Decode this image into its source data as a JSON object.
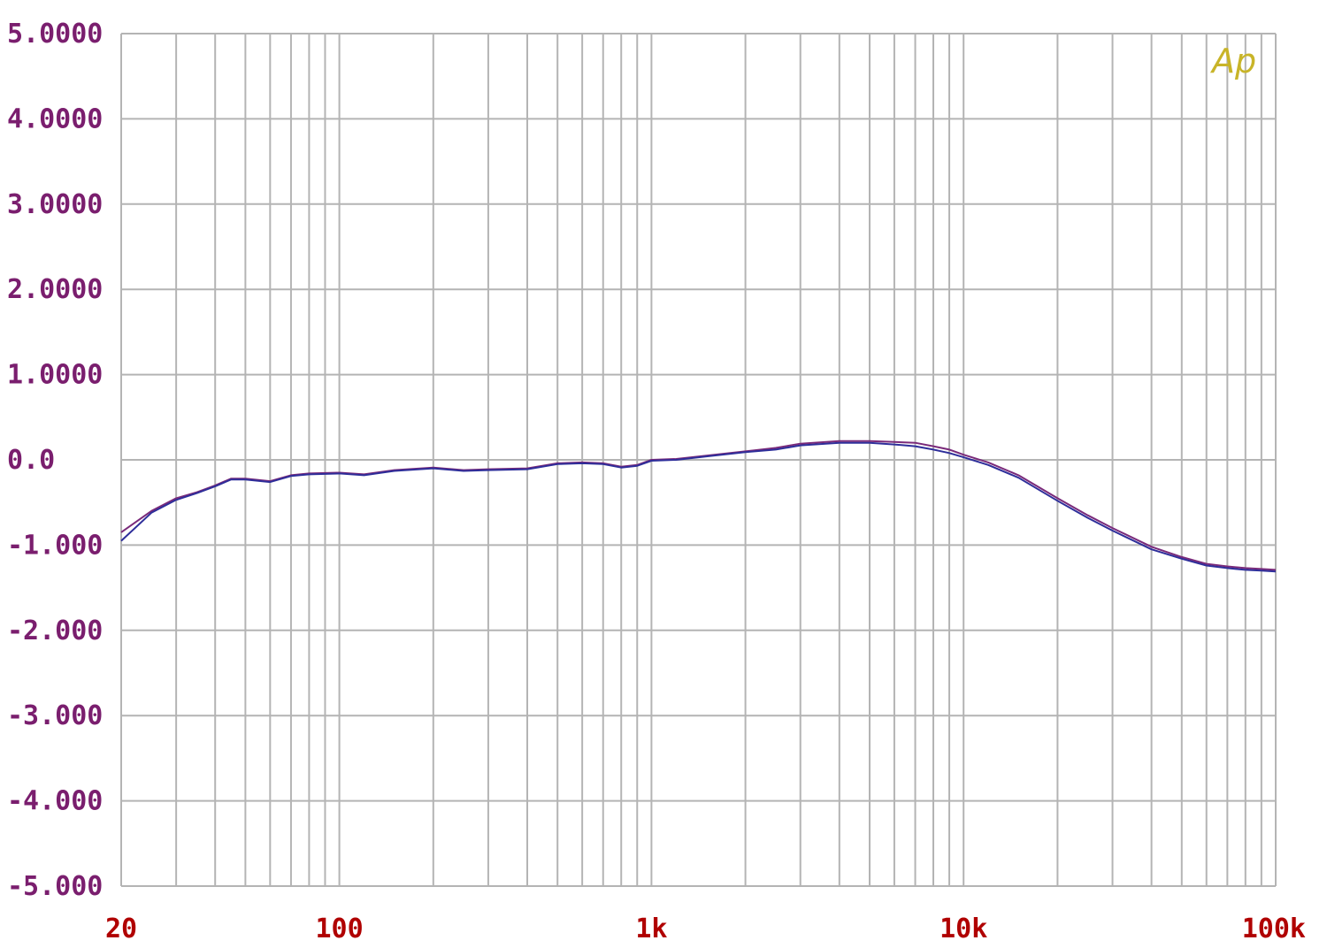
{
  "colors": {
    "grid": "#b4b4b4",
    "y_tick_text": "#7a1e6e",
    "x_tick_text": "#b00000",
    "logo": "#c8b428",
    "series": [
      "#7a2a7a",
      "#2e2e9a"
    ]
  },
  "logo": {
    "text": "Ap"
  },
  "chart_data": {
    "type": "line",
    "title": "",
    "xlabel": "",
    "ylabel": "",
    "x_scale": "log",
    "xlim": [
      20,
      100000
    ],
    "ylim": [
      -5,
      5
    ],
    "grid": true,
    "y_ticks": [
      {
        "value": 5,
        "label": "5.0000"
      },
      {
        "value": 4,
        "label": "4.0000"
      },
      {
        "value": 3,
        "label": "3.0000"
      },
      {
        "value": 2,
        "label": "2.0000"
      },
      {
        "value": 1,
        "label": "1.0000"
      },
      {
        "value": 0,
        "label": "0.0"
      },
      {
        "value": -1,
        "label": "-1.000"
      },
      {
        "value": -2,
        "label": "-2.000"
      },
      {
        "value": -3,
        "label": "-3.000"
      },
      {
        "value": -4,
        "label": "-4.000"
      },
      {
        "value": -5,
        "label": "-5.000"
      }
    ],
    "x_ticks": [
      {
        "value": 20,
        "label": "20"
      },
      {
        "value": 100,
        "label": "100"
      },
      {
        "value": 1000,
        "label": "1k"
      },
      {
        "value": 10000,
        "label": "10k"
      },
      {
        "value": 100000,
        "label": "100k"
      }
    ],
    "x_grid": [
      20,
      30,
      40,
      50,
      60,
      70,
      80,
      90,
      100,
      200,
      300,
      400,
      500,
      600,
      700,
      800,
      900,
      1000,
      2000,
      3000,
      4000,
      5000,
      6000,
      7000,
      8000,
      9000,
      10000,
      20000,
      30000,
      40000,
      50000,
      60000,
      70000,
      80000,
      90000,
      100000
    ],
    "series": [
      {
        "values": [
          [
            20,
            -0.85
          ],
          [
            25,
            -0.6
          ],
          [
            30,
            -0.45
          ],
          [
            35,
            -0.38
          ],
          [
            40,
            -0.3
          ],
          [
            45,
            -0.22
          ],
          [
            50,
            -0.22
          ],
          [
            60,
            -0.25
          ],
          [
            70,
            -0.18
          ],
          [
            80,
            -0.16
          ],
          [
            100,
            -0.15
          ],
          [
            120,
            -0.17
          ],
          [
            150,
            -0.12
          ],
          [
            200,
            -0.09
          ],
          [
            250,
            -0.12
          ],
          [
            300,
            -0.11
          ],
          [
            400,
            -0.1
          ],
          [
            500,
            -0.04
          ],
          [
            600,
            -0.03
          ],
          [
            700,
            -0.04
          ],
          [
            800,
            -0.08
          ],
          [
            900,
            -0.06
          ],
          [
            1000,
            0.0
          ],
          [
            1200,
            0.01
          ],
          [
            1500,
            0.05
          ],
          [
            2000,
            0.1
          ],
          [
            2500,
            0.14
          ],
          [
            3000,
            0.19
          ],
          [
            4000,
            0.22
          ],
          [
            5000,
            0.22
          ],
          [
            6000,
            0.21
          ],
          [
            7000,
            0.2
          ],
          [
            8000,
            0.16
          ],
          [
            9000,
            0.12
          ],
          [
            10000,
            0.06
          ],
          [
            12000,
            -0.03
          ],
          [
            15000,
            -0.18
          ],
          [
            20000,
            -0.45
          ],
          [
            25000,
            -0.65
          ],
          [
            30000,
            -0.8
          ],
          [
            40000,
            -1.02
          ],
          [
            50000,
            -1.14
          ],
          [
            60000,
            -1.22
          ],
          [
            70000,
            -1.25
          ],
          [
            80000,
            -1.27
          ],
          [
            90000,
            -1.28
          ],
          [
            100000,
            -1.29
          ]
        ]
      },
      {
        "values": [
          [
            20,
            -0.95
          ],
          [
            25,
            -0.62
          ],
          [
            30,
            -0.47
          ],
          [
            35,
            -0.39
          ],
          [
            40,
            -0.31
          ],
          [
            45,
            -0.23
          ],
          [
            50,
            -0.23
          ],
          [
            60,
            -0.26
          ],
          [
            70,
            -0.19
          ],
          [
            80,
            -0.17
          ],
          [
            100,
            -0.16
          ],
          [
            120,
            -0.18
          ],
          [
            150,
            -0.13
          ],
          [
            200,
            -0.1
          ],
          [
            250,
            -0.13
          ],
          [
            300,
            -0.12
          ],
          [
            400,
            -0.11
          ],
          [
            500,
            -0.05
          ],
          [
            600,
            -0.04
          ],
          [
            700,
            -0.05
          ],
          [
            800,
            -0.09
          ],
          [
            900,
            -0.07
          ],
          [
            1000,
            -0.01
          ],
          [
            1200,
            0.0
          ],
          [
            1500,
            0.04
          ],
          [
            2000,
            0.09
          ],
          [
            2500,
            0.12
          ],
          [
            3000,
            0.17
          ],
          [
            4000,
            0.2
          ],
          [
            5000,
            0.2
          ],
          [
            6000,
            0.18
          ],
          [
            7000,
            0.16
          ],
          [
            8000,
            0.12
          ],
          [
            9000,
            0.08
          ],
          [
            10000,
            0.03
          ],
          [
            12000,
            -0.06
          ],
          [
            15000,
            -0.21
          ],
          [
            20000,
            -0.48
          ],
          [
            25000,
            -0.68
          ],
          [
            30000,
            -0.83
          ],
          [
            40000,
            -1.05
          ],
          [
            50000,
            -1.16
          ],
          [
            60000,
            -1.24
          ],
          [
            70000,
            -1.27
          ],
          [
            80000,
            -1.29
          ],
          [
            90000,
            -1.3
          ],
          [
            100000,
            -1.31
          ]
        ]
      }
    ]
  }
}
